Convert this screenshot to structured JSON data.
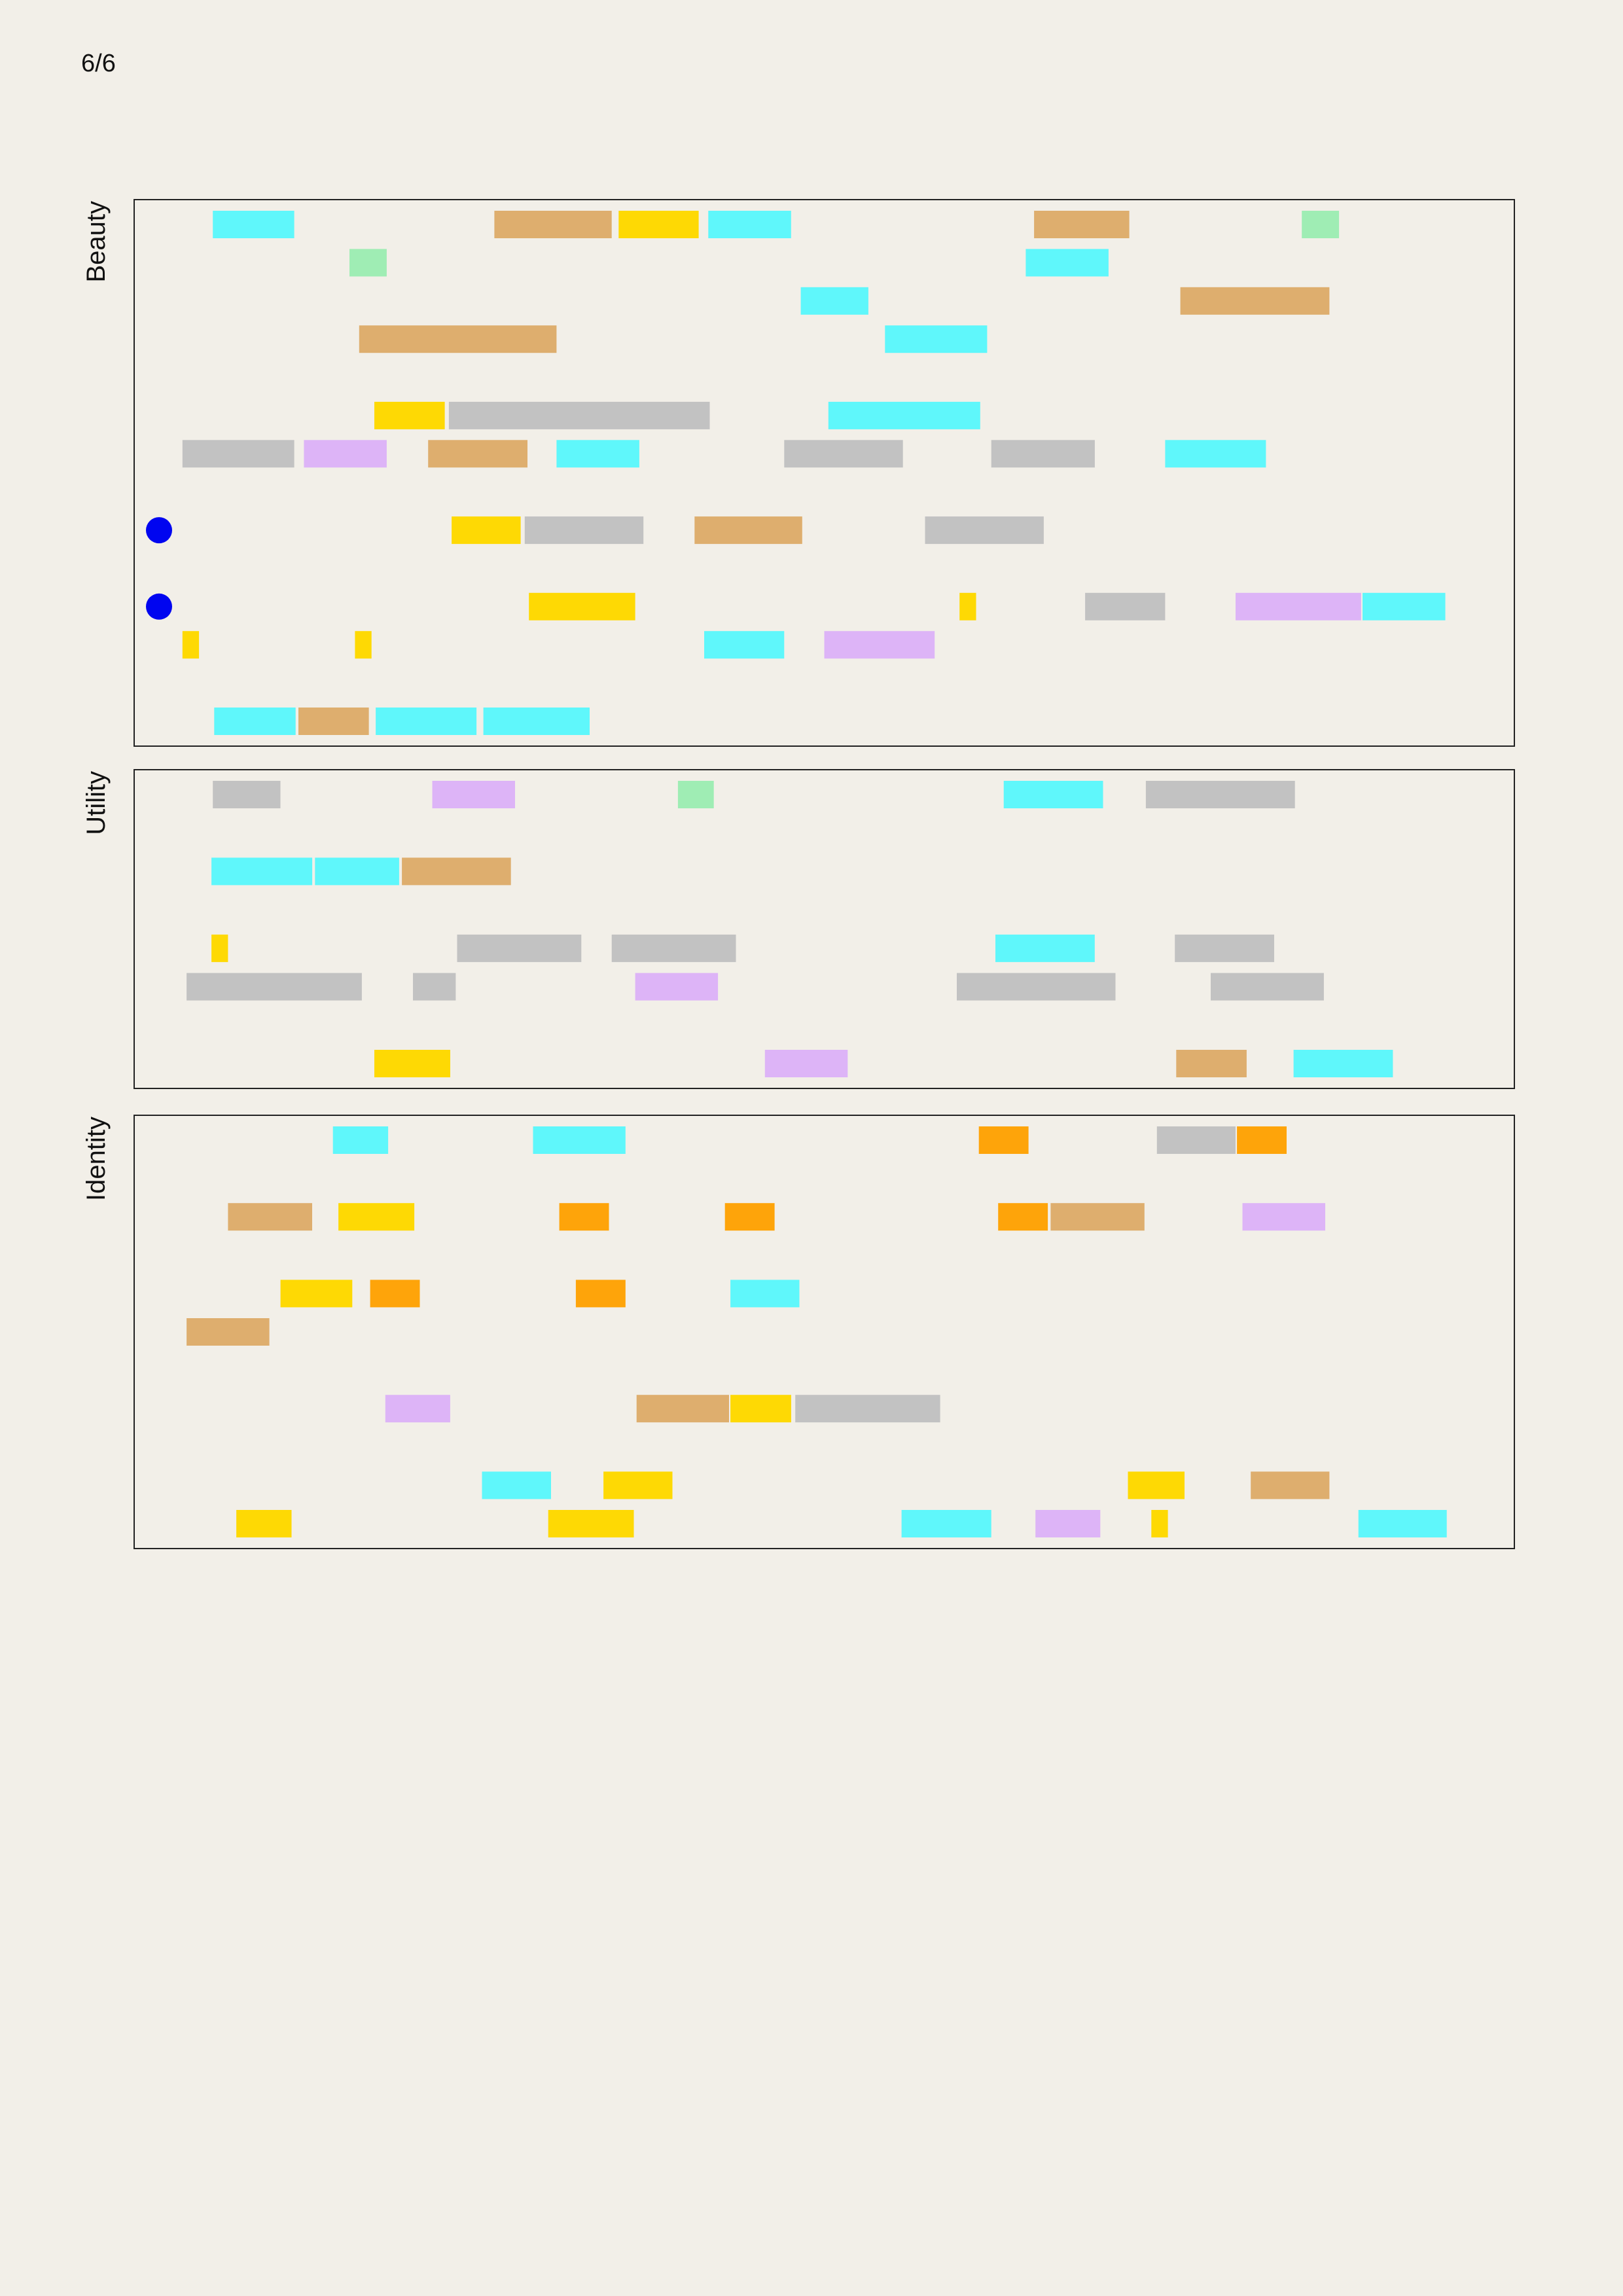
{
  "page": {
    "number_label": "6/6"
  },
  "chart_data": {
    "type": "timeline",
    "x_range": [
      0,
      100
    ],
    "legend": "none",
    "grid": false,
    "colors": {
      "cyan": "#5ff7fb",
      "tan": "#deae6e",
      "yellow": "#fed904",
      "green": "#9fedb4",
      "gray": "#c2c2c2",
      "lavender": "#ddb4f7",
      "orange": "#fea40a",
      "marker": "#0005f0"
    },
    "panels": [
      {
        "name": "Beauty",
        "rows": 14,
        "markers": [
          {
            "row": 8,
            "x": 1.8
          },
          {
            "row": 10,
            "x": 1.8
          }
        ],
        "bars": [
          {
            "row": 0,
            "start": 5.7,
            "end": 11.6,
            "color": "cyan"
          },
          {
            "row": 0,
            "start": 26.1,
            "end": 34.6,
            "color": "tan"
          },
          {
            "row": 0,
            "start": 35.1,
            "end": 40.9,
            "color": "yellow"
          },
          {
            "row": 0,
            "start": 41.6,
            "end": 47.6,
            "color": "cyan"
          },
          {
            "row": 0,
            "start": 65.2,
            "end": 72.1,
            "color": "tan"
          },
          {
            "row": 0,
            "start": 84.6,
            "end": 87.3,
            "color": "green"
          },
          {
            "row": 1,
            "start": 15.6,
            "end": 18.3,
            "color": "green"
          },
          {
            "row": 1,
            "start": 64.6,
            "end": 70.6,
            "color": "cyan"
          },
          {
            "row": 2,
            "start": 48.3,
            "end": 53.2,
            "color": "cyan"
          },
          {
            "row": 2,
            "start": 75.8,
            "end": 86.6,
            "color": "tan"
          },
          {
            "row": 3,
            "start": 16.3,
            "end": 30.6,
            "color": "tan"
          },
          {
            "row": 3,
            "start": 54.4,
            "end": 61.8,
            "color": "cyan"
          },
          {
            "row": 5,
            "start": 17.4,
            "end": 22.5,
            "color": "yellow"
          },
          {
            "row": 5,
            "start": 22.8,
            "end": 41.7,
            "color": "gray"
          },
          {
            "row": 5,
            "start": 50.3,
            "end": 61.3,
            "color": "cyan"
          },
          {
            "row": 6,
            "start": 3.5,
            "end": 11.6,
            "color": "gray"
          },
          {
            "row": 6,
            "start": 12.3,
            "end": 18.3,
            "color": "lavender"
          },
          {
            "row": 6,
            "start": 21.3,
            "end": 28.5,
            "color": "tan"
          },
          {
            "row": 6,
            "start": 30.6,
            "end": 36.6,
            "color": "cyan"
          },
          {
            "row": 6,
            "start": 47.1,
            "end": 55.7,
            "color": "gray"
          },
          {
            "row": 6,
            "start": 62.1,
            "end": 69.6,
            "color": "gray"
          },
          {
            "row": 6,
            "start": 74.7,
            "end": 82.0,
            "color": "cyan"
          },
          {
            "row": 8,
            "start": 23.0,
            "end": 28.0,
            "color": "yellow"
          },
          {
            "row": 8,
            "start": 28.3,
            "end": 36.9,
            "color": "gray"
          },
          {
            "row": 8,
            "start": 40.6,
            "end": 48.4,
            "color": "tan"
          },
          {
            "row": 8,
            "start": 57.3,
            "end": 65.9,
            "color": "gray"
          },
          {
            "row": 10,
            "start": 28.6,
            "end": 36.3,
            "color": "yellow"
          },
          {
            "row": 10,
            "start": 59.8,
            "end": 61.0,
            "color": "yellow"
          },
          {
            "row": 10,
            "start": 68.9,
            "end": 74.7,
            "color": "gray"
          },
          {
            "row": 10,
            "start": 79.8,
            "end": 88.9,
            "color": "lavender"
          },
          {
            "row": 10,
            "start": 89.0,
            "end": 95.0,
            "color": "cyan"
          },
          {
            "row": 11,
            "start": 3.5,
            "end": 4.7,
            "color": "yellow"
          },
          {
            "row": 11,
            "start": 16.0,
            "end": 17.2,
            "color": "yellow"
          },
          {
            "row": 11,
            "start": 41.3,
            "end": 47.1,
            "color": "cyan"
          },
          {
            "row": 11,
            "start": 50.0,
            "end": 58.0,
            "color": "lavender"
          },
          {
            "row": 13,
            "start": 5.8,
            "end": 11.7,
            "color": "cyan"
          },
          {
            "row": 13,
            "start": 11.9,
            "end": 17.0,
            "color": "tan"
          },
          {
            "row": 13,
            "start": 17.5,
            "end": 24.8,
            "color": "cyan"
          },
          {
            "row": 13,
            "start": 25.3,
            "end": 33.0,
            "color": "cyan"
          }
        ]
      },
      {
        "name": "Utility",
        "rows": 8,
        "markers": [],
        "bars": [
          {
            "row": 0,
            "start": 5.7,
            "end": 10.6,
            "color": "gray"
          },
          {
            "row": 0,
            "start": 21.6,
            "end": 27.6,
            "color": "lavender"
          },
          {
            "row": 0,
            "start": 39.4,
            "end": 42.0,
            "color": "green"
          },
          {
            "row": 0,
            "start": 63.0,
            "end": 70.2,
            "color": "cyan"
          },
          {
            "row": 0,
            "start": 73.3,
            "end": 84.1,
            "color": "gray"
          },
          {
            "row": 2,
            "start": 5.6,
            "end": 12.9,
            "color": "cyan"
          },
          {
            "row": 2,
            "start": 13.1,
            "end": 19.2,
            "color": "cyan"
          },
          {
            "row": 2,
            "start": 19.4,
            "end": 27.3,
            "color": "tan"
          },
          {
            "row": 4,
            "start": 5.6,
            "end": 6.8,
            "color": "yellow"
          },
          {
            "row": 4,
            "start": 23.4,
            "end": 32.4,
            "color": "gray"
          },
          {
            "row": 4,
            "start": 34.6,
            "end": 43.6,
            "color": "gray"
          },
          {
            "row": 4,
            "start": 62.4,
            "end": 69.6,
            "color": "cyan"
          },
          {
            "row": 4,
            "start": 75.4,
            "end": 82.6,
            "color": "gray"
          },
          {
            "row": 5,
            "start": 3.8,
            "end": 16.5,
            "color": "gray"
          },
          {
            "row": 5,
            "start": 20.2,
            "end": 23.3,
            "color": "gray"
          },
          {
            "row": 5,
            "start": 36.3,
            "end": 42.3,
            "color": "lavender"
          },
          {
            "row": 5,
            "start": 59.6,
            "end": 71.1,
            "color": "gray"
          },
          {
            "row": 5,
            "start": 78.0,
            "end": 86.2,
            "color": "gray"
          },
          {
            "row": 7,
            "start": 17.4,
            "end": 22.9,
            "color": "yellow"
          },
          {
            "row": 7,
            "start": 45.7,
            "end": 51.7,
            "color": "lavender"
          },
          {
            "row": 7,
            "start": 75.5,
            "end": 80.6,
            "color": "tan"
          },
          {
            "row": 7,
            "start": 84.0,
            "end": 91.2,
            "color": "cyan"
          }
        ]
      },
      {
        "name": "Identity",
        "rows": 11,
        "markers": [],
        "bars": [
          {
            "row": 0,
            "start": 14.4,
            "end": 18.4,
            "color": "cyan"
          },
          {
            "row": 0,
            "start": 28.9,
            "end": 35.6,
            "color": "cyan"
          },
          {
            "row": 0,
            "start": 61.2,
            "end": 64.8,
            "color": "orange"
          },
          {
            "row": 0,
            "start": 74.1,
            "end": 79.8,
            "color": "gray"
          },
          {
            "row": 0,
            "start": 79.9,
            "end": 83.5,
            "color": "orange"
          },
          {
            "row": 2,
            "start": 6.8,
            "end": 12.9,
            "color": "tan"
          },
          {
            "row": 2,
            "start": 14.8,
            "end": 20.3,
            "color": "yellow"
          },
          {
            "row": 2,
            "start": 30.8,
            "end": 34.4,
            "color": "orange"
          },
          {
            "row": 2,
            "start": 42.8,
            "end": 46.4,
            "color": "orange"
          },
          {
            "row": 2,
            "start": 62.6,
            "end": 66.2,
            "color": "orange"
          },
          {
            "row": 2,
            "start": 66.4,
            "end": 73.2,
            "color": "tan"
          },
          {
            "row": 2,
            "start": 80.3,
            "end": 86.3,
            "color": "lavender"
          },
          {
            "row": 4,
            "start": 10.6,
            "end": 15.8,
            "color": "yellow"
          },
          {
            "row": 4,
            "start": 17.1,
            "end": 20.7,
            "color": "orange"
          },
          {
            "row": 4,
            "start": 32.0,
            "end": 35.6,
            "color": "orange"
          },
          {
            "row": 4,
            "start": 43.2,
            "end": 48.2,
            "color": "cyan"
          },
          {
            "row": 5,
            "start": 3.8,
            "end": 9.8,
            "color": "tan"
          },
          {
            "row": 7,
            "start": 18.2,
            "end": 22.9,
            "color": "lavender"
          },
          {
            "row": 7,
            "start": 36.4,
            "end": 43.1,
            "color": "tan"
          },
          {
            "row": 7,
            "start": 43.2,
            "end": 47.6,
            "color": "yellow"
          },
          {
            "row": 7,
            "start": 47.9,
            "end": 58.4,
            "color": "gray"
          },
          {
            "row": 9,
            "start": 25.2,
            "end": 30.2,
            "color": "cyan"
          },
          {
            "row": 9,
            "start": 34.0,
            "end": 39.0,
            "color": "yellow"
          },
          {
            "row": 9,
            "start": 72.0,
            "end": 76.1,
            "color": "yellow"
          },
          {
            "row": 9,
            "start": 80.9,
            "end": 86.6,
            "color": "tan"
          },
          {
            "row": 10,
            "start": 7.4,
            "end": 11.4,
            "color": "yellow"
          },
          {
            "row": 10,
            "start": 30.0,
            "end": 36.2,
            "color": "yellow"
          },
          {
            "row": 10,
            "start": 55.6,
            "end": 62.1,
            "color": "cyan"
          },
          {
            "row": 10,
            "start": 65.3,
            "end": 70.0,
            "color": "lavender"
          },
          {
            "row": 10,
            "start": 73.7,
            "end": 74.9,
            "color": "yellow"
          },
          {
            "row": 10,
            "start": 88.7,
            "end": 95.1,
            "color": "cyan"
          }
        ]
      }
    ]
  }
}
